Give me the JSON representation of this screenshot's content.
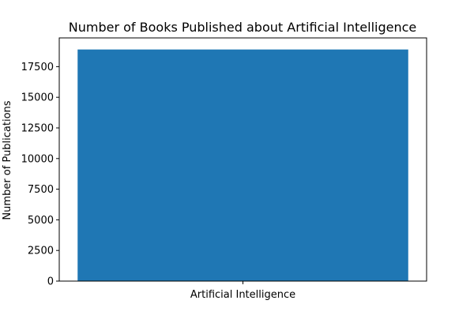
{
  "chart_data": {
    "type": "bar",
    "title": "Number of Books Published about Artificial Intelligence",
    "xlabel": "",
    "ylabel": "Number of Publications",
    "categories": [
      "Artificial Intelligence"
    ],
    "values": [
      18900
    ],
    "ylim": [
      0,
      19845
    ],
    "yticks": [
      0,
      2500,
      5000,
      7500,
      10000,
      12500,
      15000,
      17500
    ],
    "grid": false,
    "legend": "none",
    "colors": {
      "bar": "#1f77b4",
      "axis": "#000000",
      "text": "#000000",
      "background": "#ffffff"
    }
  }
}
